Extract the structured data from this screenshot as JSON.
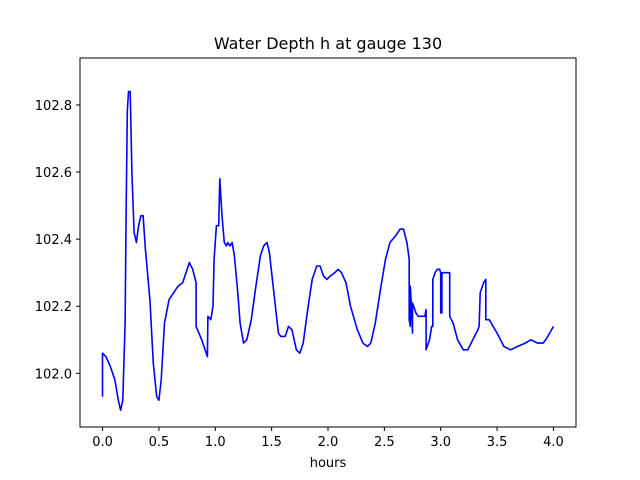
{
  "chart_data": {
    "type": "line",
    "title": "Water Depth h at gauge 130",
    "xlabel": "hours",
    "ylabel": "",
    "xlim": [
      -0.2,
      4.2
    ],
    "ylim": [
      101.84,
      102.94
    ],
    "grid": false,
    "xticks": [
      0.0,
      0.5,
      1.0,
      1.5,
      2.0,
      2.5,
      3.0,
      3.5,
      4.0
    ],
    "xtick_labels": [
      "0.0",
      "0.5",
      "1.0",
      "1.5",
      "2.0",
      "2.5",
      "3.0",
      "3.5",
      "4.0"
    ],
    "yticks": [
      102.0,
      102.2,
      102.4,
      102.6,
      102.8
    ],
    "ytick_labels": [
      "102.0",
      "102.2",
      "102.4",
      "102.6",
      "102.8"
    ],
    "series": [
      {
        "name": "",
        "color": "#0000ff",
        "points": [
          [
            0.0,
            101.93
          ],
          [
            0.0,
            102.06
          ],
          [
            0.03,
            102.05
          ],
          [
            0.07,
            102.02
          ],
          [
            0.11,
            101.98
          ],
          [
            0.14,
            101.92
          ],
          [
            0.16,
            101.89
          ],
          [
            0.18,
            101.92
          ],
          [
            0.2,
            102.15
          ],
          [
            0.21,
            102.5
          ],
          [
            0.22,
            102.78
          ],
          [
            0.23,
            102.84
          ],
          [
            0.245,
            102.84
          ],
          [
            0.26,
            102.6
          ],
          [
            0.28,
            102.42
          ],
          [
            0.3,
            102.39
          ],
          [
            0.32,
            102.44
          ],
          [
            0.34,
            102.47
          ],
          [
            0.36,
            102.47
          ],
          [
            0.38,
            102.37
          ],
          [
            0.42,
            102.22
          ],
          [
            0.45,
            102.03
          ],
          [
            0.48,
            101.93
          ],
          [
            0.5,
            101.92
          ],
          [
            0.52,
            101.98
          ],
          [
            0.55,
            102.15
          ],
          [
            0.59,
            102.22
          ],
          [
            0.63,
            102.24
          ],
          [
            0.67,
            102.26
          ],
          [
            0.71,
            102.27
          ],
          [
            0.74,
            102.3
          ],
          [
            0.77,
            102.33
          ],
          [
            0.8,
            102.31
          ],
          [
            0.83,
            102.27
          ],
          [
            0.83,
            102.14
          ],
          [
            0.88,
            102.1
          ],
          [
            0.93,
            102.05
          ],
          [
            0.935,
            102.17
          ],
          [
            0.96,
            102.16
          ],
          [
            0.98,
            102.2
          ],
          [
            0.99,
            102.34
          ],
          [
            1.01,
            102.44
          ],
          [
            1.03,
            102.44
          ],
          [
            1.04,
            102.58
          ],
          [
            1.06,
            102.47
          ],
          [
            1.08,
            102.39
          ],
          [
            1.1,
            102.38
          ],
          [
            1.11,
            102.39
          ],
          [
            1.13,
            102.38
          ],
          [
            1.15,
            102.39
          ],
          [
            1.17,
            102.35
          ],
          [
            1.2,
            102.24
          ],
          [
            1.22,
            102.15
          ],
          [
            1.25,
            102.09
          ],
          [
            1.28,
            102.1
          ],
          [
            1.32,
            102.16
          ],
          [
            1.36,
            102.26
          ],
          [
            1.4,
            102.35
          ],
          [
            1.43,
            102.38
          ],
          [
            1.46,
            102.39
          ],
          [
            1.48,
            102.36
          ],
          [
            1.52,
            102.24
          ],
          [
            1.56,
            102.12
          ],
          [
            1.58,
            102.11
          ],
          [
            1.62,
            102.11
          ],
          [
            1.65,
            102.14
          ],
          [
            1.68,
            102.13
          ],
          [
            1.72,
            102.07
          ],
          [
            1.75,
            102.06
          ],
          [
            1.78,
            102.09
          ],
          [
            1.82,
            102.19
          ],
          [
            1.86,
            102.28
          ],
          [
            1.9,
            102.32
          ],
          [
            1.93,
            102.32
          ],
          [
            1.96,
            102.29
          ],
          [
            1.99,
            102.28
          ],
          [
            2.02,
            102.29
          ],
          [
            2.06,
            102.3
          ],
          [
            2.09,
            102.31
          ],
          [
            2.12,
            102.3
          ],
          [
            2.16,
            102.27
          ],
          [
            2.2,
            102.2
          ],
          [
            2.26,
            102.13
          ],
          [
            2.31,
            102.09
          ],
          [
            2.35,
            102.08
          ],
          [
            2.38,
            102.09
          ],
          [
            2.42,
            102.15
          ],
          [
            2.47,
            102.26
          ],
          [
            2.51,
            102.34
          ],
          [
            2.55,
            102.39
          ],
          [
            2.6,
            102.41
          ],
          [
            2.64,
            102.43
          ],
          [
            2.67,
            102.43
          ],
          [
            2.7,
            102.39
          ],
          [
            2.72,
            102.34
          ],
          [
            2.72,
            102.16
          ],
          [
            2.73,
            102.14
          ],
          [
            2.73,
            102.26
          ],
          [
            2.74,
            102.2
          ],
          [
            2.75,
            102.12
          ],
          [
            2.75,
            102.21
          ],
          [
            2.78,
            102.18
          ],
          [
            2.8,
            102.17
          ],
          [
            2.83,
            102.17
          ],
          [
            2.86,
            102.17
          ],
          [
            2.87,
            102.19
          ],
          [
            2.87,
            102.07
          ],
          [
            2.9,
            102.1
          ],
          [
            2.92,
            102.14
          ],
          [
            2.93,
            102.14
          ],
          [
            2.93,
            102.28
          ],
          [
            2.95,
            102.3
          ],
          [
            2.97,
            102.31
          ],
          [
            2.99,
            102.31
          ],
          [
            3.0,
            102.3
          ],
          [
            3.0,
            102.18
          ],
          [
            3.01,
            102.18
          ],
          [
            3.01,
            102.3
          ],
          [
            3.05,
            102.3
          ],
          [
            3.08,
            102.3
          ],
          [
            3.08,
            102.17
          ],
          [
            3.11,
            102.15
          ],
          [
            3.15,
            102.1
          ],
          [
            3.2,
            102.07
          ],
          [
            3.24,
            102.07
          ],
          [
            3.3,
            102.11
          ],
          [
            3.33,
            102.13
          ],
          [
            3.34,
            102.14
          ],
          [
            3.35,
            102.24
          ],
          [
            3.38,
            102.27
          ],
          [
            3.4,
            102.28
          ],
          [
            3.4,
            102.16
          ],
          [
            3.43,
            102.16
          ],
          [
            3.5,
            102.12
          ],
          [
            3.56,
            102.08
          ],
          [
            3.62,
            102.07
          ],
          [
            3.68,
            102.08
          ],
          [
            3.75,
            102.09
          ],
          [
            3.8,
            102.1
          ],
          [
            3.86,
            102.09
          ],
          [
            3.91,
            102.09
          ],
          [
            3.95,
            102.11
          ],
          [
            4.0,
            102.14
          ]
        ]
      }
    ]
  }
}
